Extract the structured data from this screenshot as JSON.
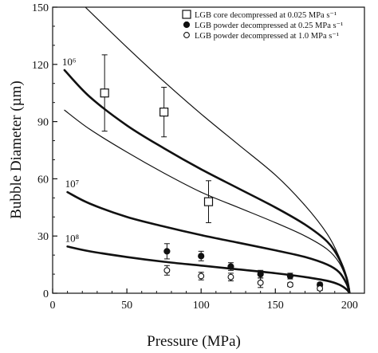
{
  "chart_data": {
    "type": "line",
    "xlabel": "Pressure (MPa)",
    "ylabel": "Bubble Diameter (µm)",
    "xlim": [
      0,
      210
    ],
    "ylim": [
      0,
      150
    ],
    "xticks": [
      0,
      50,
      100,
      150,
      200
    ],
    "yticks": [
      0,
      30,
      60,
      90,
      120,
      150
    ],
    "grid": false,
    "legend_position": "top-right",
    "legend": [
      {
        "label": "LGB core decompressed at 0.025 MPa s⁻¹",
        "marker": "open-square"
      },
      {
        "label": "LGB powder decompressed at 0.25 MPa s⁻¹",
        "marker": "filled-circle"
      },
      {
        "label": "LGB powder decompressed at 1.0 MPa s⁻¹",
        "marker": "open-circle"
      }
    ],
    "curve_labels": [
      {
        "text": "10⁶",
        "series": 1
      },
      {
        "text": "10⁷",
        "series": 3
      },
      {
        "text": "10⁸",
        "series": 4
      }
    ],
    "curves": [
      {
        "weight": "thin",
        "points": [
          [
            22,
            150
          ],
          [
            50,
            129
          ],
          [
            75,
            111
          ],
          [
            100,
            94
          ],
          [
            125,
            78
          ],
          [
            150,
            62
          ],
          [
            170,
            46
          ],
          [
            185,
            31
          ],
          [
            193,
            19
          ],
          [
            198,
            8
          ],
          [
            200,
            0
          ]
        ]
      },
      {
        "weight": "thick",
        "points": [
          [
            8,
            117
          ],
          [
            25,
            103
          ],
          [
            50,
            88
          ],
          [
            75,
            76
          ],
          [
            100,
            65
          ],
          [
            125,
            55
          ],
          [
            150,
            45
          ],
          [
            170,
            36
          ],
          [
            185,
            27
          ],
          [
            193,
            18
          ],
          [
            198,
            8
          ],
          [
            200,
            0
          ]
        ]
      },
      {
        "weight": "thin",
        "points": [
          [
            8,
            96
          ],
          [
            25,
            86
          ],
          [
            50,
            74
          ],
          [
            75,
            63
          ],
          [
            100,
            53
          ],
          [
            125,
            45
          ],
          [
            150,
            37
          ],
          [
            170,
            30
          ],
          [
            185,
            23
          ],
          [
            193,
            16
          ],
          [
            198,
            7
          ],
          [
            200,
            0
          ]
        ]
      },
      {
        "weight": "thick",
        "points": [
          [
            10,
            53
          ],
          [
            25,
            47
          ],
          [
            50,
            40
          ],
          [
            75,
            35
          ],
          [
            100,
            30.5
          ],
          [
            125,
            26.5
          ],
          [
            150,
            22.5
          ],
          [
            170,
            19
          ],
          [
            185,
            15
          ],
          [
            193,
            11
          ],
          [
            198,
            5
          ],
          [
            200,
            0
          ]
        ]
      },
      {
        "weight": "thick",
        "points": [
          [
            10,
            24.5
          ],
          [
            25,
            22
          ],
          [
            50,
            19
          ],
          [
            75,
            16.5
          ],
          [
            100,
            14.5
          ],
          [
            125,
            12.5
          ],
          [
            150,
            10.5
          ],
          [
            170,
            8.5
          ],
          [
            185,
            6.5
          ],
          [
            193,
            4.5
          ],
          [
            198,
            2
          ],
          [
            200,
            0
          ]
        ]
      }
    ],
    "series": [
      {
        "marker": "open-square",
        "points": [
          {
            "x": 35,
            "y": 105,
            "err": 20
          },
          {
            "x": 75,
            "y": 95,
            "err": 13
          },
          {
            "x": 105,
            "y": 48,
            "err": 11
          }
        ]
      },
      {
        "marker": "filled-circle",
        "points": [
          {
            "x": 77,
            "y": 22,
            "err": 4
          },
          {
            "x": 100,
            "y": 19.5,
            "err": 2.5
          },
          {
            "x": 120,
            "y": 14,
            "err": 2
          },
          {
            "x": 140,
            "y": 10,
            "err": 2
          },
          {
            "x": 160,
            "y": 9,
            "err": 1.5
          },
          {
            "x": 180,
            "y": 4.5,
            "err": 1
          }
        ]
      },
      {
        "marker": "open-circle",
        "points": [
          {
            "x": 77,
            "y": 12,
            "err": 2.5
          },
          {
            "x": 100,
            "y": 9,
            "err": 2
          },
          {
            "x": 120,
            "y": 8.5,
            "err": 2
          },
          {
            "x": 140,
            "y": 5.5,
            "err": 2.5
          },
          {
            "x": 160,
            "y": 4.5,
            "err": 1
          },
          {
            "x": 180,
            "y": 2.5,
            "err": 1
          }
        ]
      }
    ]
  }
}
